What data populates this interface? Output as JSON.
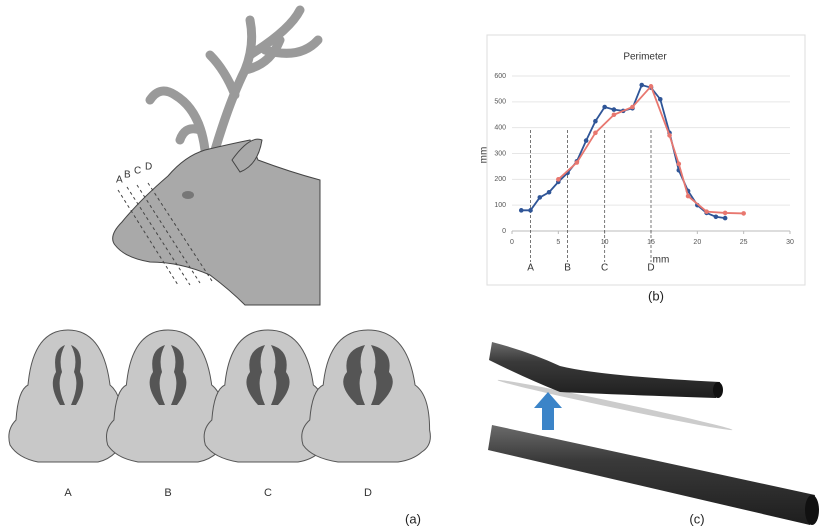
{
  "chart_data": {
    "type": "line",
    "title": "Perimeter",
    "x_label": "mm",
    "y_label": "mm",
    "xlim": [
      0,
      30
    ],
    "ylim": [
      0,
      600
    ],
    "xticks": [
      0,
      5,
      10,
      15,
      20,
      25,
      30
    ],
    "yticks": [
      0,
      100,
      200,
      300,
      400,
      500,
      600
    ],
    "grid": true,
    "series": [
      {
        "color": "#2f5597",
        "x": [
          1,
          2,
          3,
          4,
          5,
          6,
          7,
          8,
          9,
          10,
          11,
          12,
          13,
          14,
          15,
          16,
          17,
          18,
          19,
          20,
          21,
          22,
          23
        ],
        "values": [
          80,
          80,
          130,
          150,
          190,
          225,
          270,
          350,
          425,
          480,
          470,
          465,
          475,
          565,
          555,
          510,
          380,
          235,
          155,
          100,
          70,
          55,
          50
        ]
      },
      {
        "color": "#e8776f",
        "x": [
          5,
          7,
          9,
          11,
          13,
          15,
          17,
          18,
          19,
          21,
          23,
          25
        ],
        "values": [
          200,
          265,
          380,
          450,
          480,
          560,
          370,
          260,
          135,
          75,
          70,
          68
        ]
      }
    ],
    "markers": [
      {
        "x": 2,
        "label": "A"
      },
      {
        "x": 6,
        "label": "B"
      },
      {
        "x": 10,
        "label": "C"
      },
      {
        "x": 15,
        "label": "D"
      }
    ]
  },
  "deer": {
    "cut_labels": [
      "A",
      "B",
      "C",
      "D"
    ]
  },
  "sections": {
    "labels": [
      "A",
      "B",
      "C",
      "D"
    ]
  },
  "panels": {
    "a": "(a)",
    "b": "(b)",
    "c": "(c)"
  }
}
